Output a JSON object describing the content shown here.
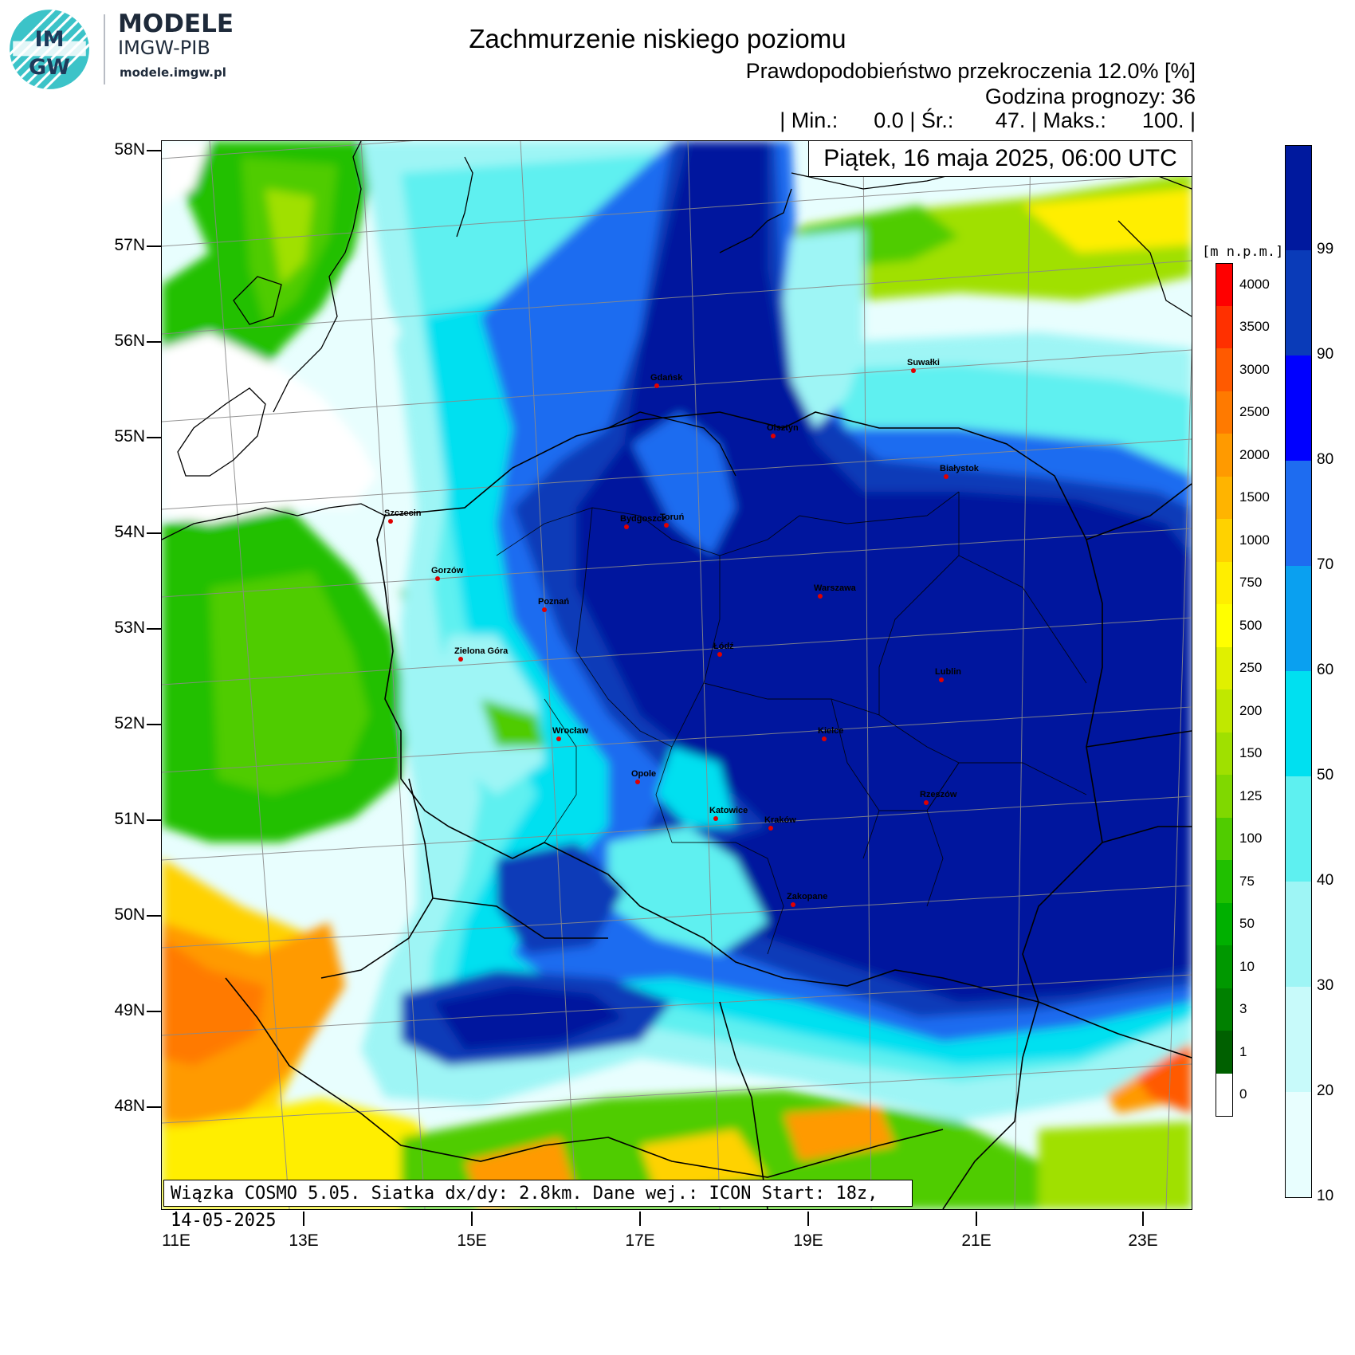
{
  "logo": {
    "brand": "MODELE",
    "org": "IMGW-PIB",
    "url": "modele.imgw.pl",
    "mark": "IMGW"
  },
  "header": {
    "title": "Zachmurzenie niskiego poziomu",
    "subtitle": "Prawdopodobieństwo przekroczenia 12.0% [%]",
    "forecast_hour": "Godzina prognozy: 36",
    "stats_line": "| Min.:      0.0 | Śr.:       47. | Maks.:      100. |",
    "date": "Piątek, 16 maja 2025, 06:00 UTC"
  },
  "footer": "Wiązka COSMO 5.05. Siatka dx/dy: 2.8km. Dane wej.: ICON Start: 18z, 14-05-2025",
  "axes": {
    "latitudes": [
      "58N",
      "57N",
      "56N",
      "55N",
      "54N",
      "53N",
      "52N",
      "51N",
      "50N",
      "49N",
      "48N"
    ],
    "longitudes": [
      "11E",
      "13E",
      "15E",
      "17E",
      "19E",
      "21E",
      "23E"
    ]
  },
  "cities": [
    {
      "name": "Gdańsk"
    },
    {
      "name": "Suwałki"
    },
    {
      "name": "Olsztyn"
    },
    {
      "name": "Białystok"
    },
    {
      "name": "Szczecin"
    },
    {
      "name": "Bydgoszcz"
    },
    {
      "name": "Toruń"
    },
    {
      "name": "Gorzów"
    },
    {
      "name": "Poznań"
    },
    {
      "name": "Warszawa"
    },
    {
      "name": "Zielona Góra"
    },
    {
      "name": "Łódź"
    },
    {
      "name": "Lublin"
    },
    {
      "name": "Wrocław"
    },
    {
      "name": "Kielce"
    },
    {
      "name": "Opole"
    },
    {
      "name": "Rzeszów"
    },
    {
      "name": "Katowice"
    },
    {
      "name": "Kraków"
    },
    {
      "name": "Zakopane"
    }
  ],
  "cloud_scale": {
    "labels": [
      "99",
      "90",
      "80",
      "70",
      "60",
      "50",
      "40",
      "30",
      "20",
      "10"
    ],
    "colors": [
      "#00199e",
      "#0a3bb8",
      "#0000ff",
      "#1e6cf0",
      "#0aa0f0",
      "#00e0f0",
      "#5ef0f0",
      "#9ef5f5",
      "#c8fafa",
      "#e8fefe"
    ]
  },
  "altitude_scale": {
    "unit": "[m n.p.m.]",
    "labels": [
      "4000",
      "3500",
      "3000",
      "2500",
      "2000",
      "1500",
      "1000",
      "750",
      "500",
      "250",
      "200",
      "150",
      "125",
      "100",
      "75",
      "50",
      "10",
      "3",
      "1",
      "0"
    ],
    "colors": [
      "#ff0000",
      "#ff3000",
      "#ff5a00",
      "#ff7a00",
      "#ff9a00",
      "#ffb400",
      "#ffd200",
      "#ffee00",
      "#ffff00",
      "#e0f000",
      "#c0e800",
      "#a0e000",
      "#80d800",
      "#50cc00",
      "#20c000",
      "#00b000",
      "#009800",
      "#008000",
      "#006000",
      "#ffffff"
    ]
  }
}
